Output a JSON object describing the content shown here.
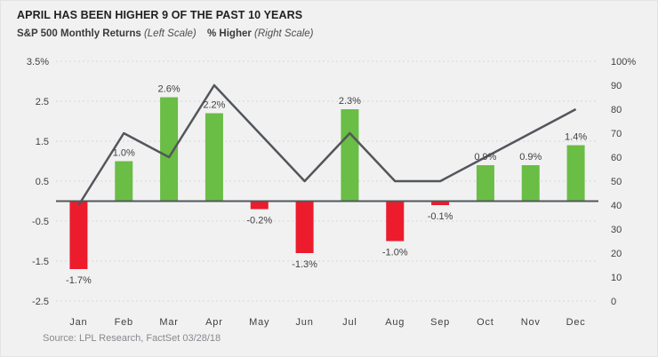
{
  "header": {
    "title": "APRIL HAS BEEN HIGHER 9 OF THE PAST 10 YEARS",
    "legend": [
      {
        "label": "S&P 500 Monthly Returns",
        "scale_note": "(Left Scale)"
      },
      {
        "label": "% Higher",
        "scale_note": "(Right Scale)"
      }
    ]
  },
  "source": "Source: LPL Research, FactSet 03/28/18",
  "colors": {
    "background": "#f1f1f2",
    "positive_bar": "#6abd45",
    "negative_bar": "#ec1c2d",
    "line": "#53565a",
    "zero_line": "#53565a",
    "grid": "#d7d7d8",
    "tick_text": "#414042",
    "muted_text": "#87898c"
  },
  "chart_data": {
    "type": "combo-bar-line",
    "title": "APRIL HAS BEEN HIGHER 9 OF THE PAST 10 YEARS",
    "categories": [
      "Jan",
      "Feb",
      "Mar",
      "Apr",
      "May",
      "Jun",
      "Jul",
      "Aug",
      "Sep",
      "Oct",
      "Nov",
      "Dec"
    ],
    "series": [
      {
        "name": "S&P 500 Monthly Returns",
        "type": "bar",
        "axis": "left",
        "values": [
          -1.7,
          1.0,
          2.6,
          2.2,
          -0.2,
          -1.3,
          2.3,
          -1.0,
          -0.1,
          0.9,
          0.9,
          1.4
        ],
        "labels": [
          "-1.7%",
          "1.0%",
          "2.6%",
          "2.2%",
          "-0.2%",
          "-1.3%",
          "2.3%",
          "-1.0%",
          "-0.1%",
          "0.9%",
          "0.9%",
          "1.4%"
        ]
      },
      {
        "name": "% Higher",
        "type": "line",
        "axis": "right",
        "values": [
          40,
          70,
          60,
          90,
          70,
          50,
          70,
          50,
          50,
          60,
          70,
          80
        ]
      }
    ],
    "left_axis": {
      "range": [
        -2.5,
        3.5
      ],
      "ticks": [
        3.5,
        2.5,
        1.5,
        0.5,
        -0.5,
        -1.5,
        -2.5
      ],
      "tick_labels": [
        "3.5%",
        "2.5",
        "1.5",
        "0.5",
        "-0.5",
        "-1.5",
        "-2.5"
      ]
    },
    "right_axis": {
      "range": [
        0,
        100
      ],
      "ticks": [
        100,
        90,
        80,
        70,
        60,
        50,
        40,
        30,
        20,
        10,
        0
      ],
      "tick_labels": [
        "100%",
        "90",
        "80",
        "70",
        "60",
        "50",
        "40",
        "30",
        "20",
        "10",
        "0"
      ]
    },
    "grid": "dashed horizontal lines at left-axis ticks",
    "legend_position": "top"
  }
}
